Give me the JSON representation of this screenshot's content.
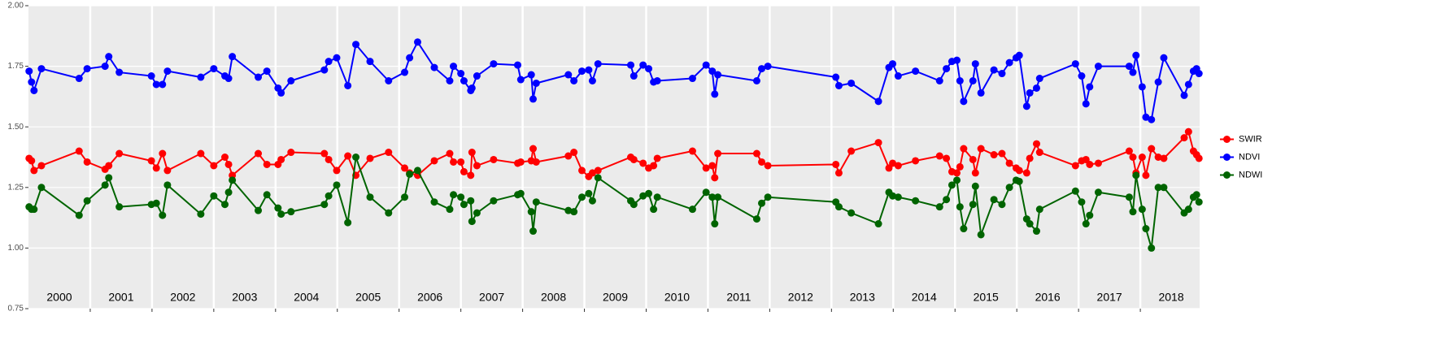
{
  "chart_data": {
    "type": "line",
    "x": [
      2000.01,
      2000.05,
      2000.09,
      2000.21,
      2000.82,
      2000.95,
      2001.24,
      2001.3,
      2001.47,
      2001.99,
      2002.07,
      2002.17,
      2002.25,
      2002.79,
      2003.0,
      2003.18,
      2003.24,
      2003.3,
      2003.72,
      2003.86,
      2004.04,
      2004.09,
      2004.25,
      2004.79,
      2004.86,
      2004.99,
      2005.17,
      2005.3,
      2005.53,
      2005.83,
      2006.09,
      2006.17,
      2006.3,
      2006.57,
      2006.82,
      2006.88,
      2007.0,
      2007.05,
      2007.16,
      2007.18,
      2007.26,
      2007.53,
      2007.92,
      2007.97,
      2008.14,
      2008.17,
      2008.22,
      2008.74,
      2008.83,
      2008.96,
      2009.07,
      2009.13,
      2009.22,
      2009.75,
      2009.8,
      2009.95,
      2010.04,
      2010.12,
      2010.18,
      2010.75,
      2010.97,
      2011.07,
      2011.11,
      2011.16,
      2011.79,
      2011.87,
      2011.97,
      2013.07,
      2013.12,
      2013.32,
      2013.76,
      2013.93,
      2013.99,
      2014.08,
      2014.36,
      2014.75,
      2014.86,
      2014.95,
      2015.03,
      2015.08,
      2015.14,
      2015.29,
      2015.33,
      2015.42,
      2015.63,
      2015.76,
      2015.88,
      2015.99,
      2016.04,
      2016.16,
      2016.21,
      2016.32,
      2016.37,
      2016.95,
      2017.05,
      2017.12,
      2017.18,
      2017.32,
      2017.82,
      2017.88,
      2017.93,
      2018.03,
      2018.09,
      2018.18,
      2018.29,
      2018.38,
      2018.71,
      2018.78,
      2018.86,
      2018.91,
      2018.95
    ],
    "series": [
      {
        "name": "SWIR",
        "color": "#ff0000",
        "values": [
          1.37,
          1.36,
          1.32,
          1.34,
          1.4,
          1.355,
          1.325,
          1.34,
          1.39,
          1.36,
          1.33,
          1.39,
          1.32,
          1.39,
          1.34,
          1.375,
          1.345,
          1.3,
          1.39,
          1.345,
          1.345,
          1.365,
          1.395,
          1.39,
          1.365,
          1.32,
          1.38,
          1.3,
          1.37,
          1.395,
          1.33,
          1.31,
          1.3,
          1.36,
          1.39,
          1.355,
          1.355,
          1.315,
          1.3,
          1.395,
          1.34,
          1.365,
          1.35,
          1.355,
          1.36,
          1.41,
          1.355,
          1.38,
          1.395,
          1.32,
          1.295,
          1.31,
          1.32,
          1.375,
          1.365,
          1.35,
          1.33,
          1.34,
          1.37,
          1.4,
          1.33,
          1.34,
          1.29,
          1.39,
          1.39,
          1.355,
          1.34,
          1.345,
          1.31,
          1.4,
          1.435,
          1.33,
          1.35,
          1.34,
          1.36,
          1.38,
          1.37,
          1.315,
          1.31,
          1.335,
          1.41,
          1.365,
          1.31,
          1.41,
          1.385,
          1.39,
          1.35,
          1.33,
          1.32,
          1.31,
          1.37,
          1.43,
          1.395,
          1.34,
          1.36,
          1.365,
          1.345,
          1.35,
          1.4,
          1.375,
          1.31,
          1.375,
          1.3,
          1.41,
          1.375,
          1.37,
          1.455,
          1.48,
          1.4,
          1.385,
          1.37
        ]
      },
      {
        "name": "NDVI",
        "color": "#0000ff",
        "values": [
          1.73,
          1.685,
          1.65,
          1.74,
          1.7,
          1.74,
          1.75,
          1.79,
          1.725,
          1.71,
          1.675,
          1.675,
          1.73,
          1.705,
          1.74,
          1.71,
          1.7,
          1.79,
          1.705,
          1.73,
          1.66,
          1.64,
          1.69,
          1.735,
          1.77,
          1.785,
          1.67,
          1.84,
          1.77,
          1.69,
          1.725,
          1.785,
          1.85,
          1.745,
          1.69,
          1.75,
          1.72,
          1.69,
          1.65,
          1.66,
          1.71,
          1.76,
          1.755,
          1.695,
          1.715,
          1.615,
          1.68,
          1.715,
          1.69,
          1.73,
          1.735,
          1.69,
          1.76,
          1.755,
          1.71,
          1.755,
          1.74,
          1.685,
          1.69,
          1.7,
          1.755,
          1.73,
          1.635,
          1.715,
          1.69,
          1.74,
          1.75,
          1.705,
          1.67,
          1.68,
          1.605,
          1.745,
          1.76,
          1.71,
          1.73,
          1.69,
          1.74,
          1.77,
          1.775,
          1.69,
          1.605,
          1.69,
          1.76,
          1.64,
          1.735,
          1.72,
          1.765,
          1.785,
          1.795,
          1.585,
          1.64,
          1.66,
          1.7,
          1.76,
          1.71,
          1.595,
          1.665,
          1.75,
          1.75,
          1.725,
          1.795,
          1.665,
          1.54,
          1.53,
          1.685,
          1.785,
          1.63,
          1.675,
          1.73,
          1.74,
          1.72
        ]
      },
      {
        "name": "NDWI",
        "color": "#006400",
        "values": [
          1.17,
          1.16,
          1.16,
          1.25,
          1.135,
          1.195,
          1.26,
          1.29,
          1.17,
          1.18,
          1.185,
          1.135,
          1.26,
          1.14,
          1.215,
          1.18,
          1.23,
          1.28,
          1.155,
          1.22,
          1.165,
          1.14,
          1.15,
          1.18,
          1.215,
          1.26,
          1.105,
          1.375,
          1.21,
          1.145,
          1.21,
          1.305,
          1.32,
          1.19,
          1.16,
          1.22,
          1.21,
          1.18,
          1.195,
          1.11,
          1.145,
          1.195,
          1.22,
          1.225,
          1.15,
          1.07,
          1.19,
          1.155,
          1.15,
          1.21,
          1.225,
          1.195,
          1.29,
          1.195,
          1.18,
          1.215,
          1.225,
          1.16,
          1.21,
          1.16,
          1.23,
          1.21,
          1.1,
          1.21,
          1.12,
          1.185,
          1.21,
          1.19,
          1.17,
          1.145,
          1.1,
          1.23,
          1.215,
          1.21,
          1.195,
          1.17,
          1.2,
          1.26,
          1.28,
          1.17,
          1.08,
          1.18,
          1.255,
          1.055,
          1.2,
          1.18,
          1.25,
          1.28,
          1.275,
          1.12,
          1.1,
          1.07,
          1.16,
          1.235,
          1.19,
          1.1,
          1.135,
          1.23,
          1.21,
          1.15,
          1.3,
          1.16,
          1.08,
          1.0,
          1.25,
          1.25,
          1.145,
          1.16,
          1.21,
          1.22,
          1.19
        ]
      }
    ],
    "xlim": [
      2000,
      2018.96
    ],
    "xticks": [
      {
        "value": 2000.5,
        "label": "2000"
      },
      {
        "value": 2001.5,
        "label": "2001"
      },
      {
        "value": 2002.5,
        "label": "2002"
      },
      {
        "value": 2003.5,
        "label": "2003"
      },
      {
        "value": 2004.5,
        "label": "2004"
      },
      {
        "value": 2005.5,
        "label": "2005"
      },
      {
        "value": 2006.5,
        "label": "2006"
      },
      {
        "value": 2007.5,
        "label": "2007"
      },
      {
        "value": 2008.5,
        "label": "2008"
      },
      {
        "value": 2009.5,
        "label": "2009"
      },
      {
        "value": 2010.5,
        "label": "2010"
      },
      {
        "value": 2011.5,
        "label": "2011"
      },
      {
        "value": 2012.5,
        "label": "2012"
      },
      {
        "value": 2013.5,
        "label": "2013"
      },
      {
        "value": 2014.5,
        "label": "2014"
      },
      {
        "value": 2015.5,
        "label": "2015"
      },
      {
        "value": 2016.5,
        "label": "2016"
      },
      {
        "value": 2017.5,
        "label": "2017"
      },
      {
        "value": 2018.5,
        "label": "2018"
      }
    ],
    "ylim": [
      0.75,
      2.0
    ],
    "yticks": [
      0.75,
      {
        "value": 1,
        "label": "1.00"
      },
      1.25,
      {
        "value": 1.5,
        "label": "1.50"
      },
      1.75,
      {
        "value": 2,
        "label": "2.00"
      }
    ],
    "grid": true,
    "legend": "right"
  }
}
